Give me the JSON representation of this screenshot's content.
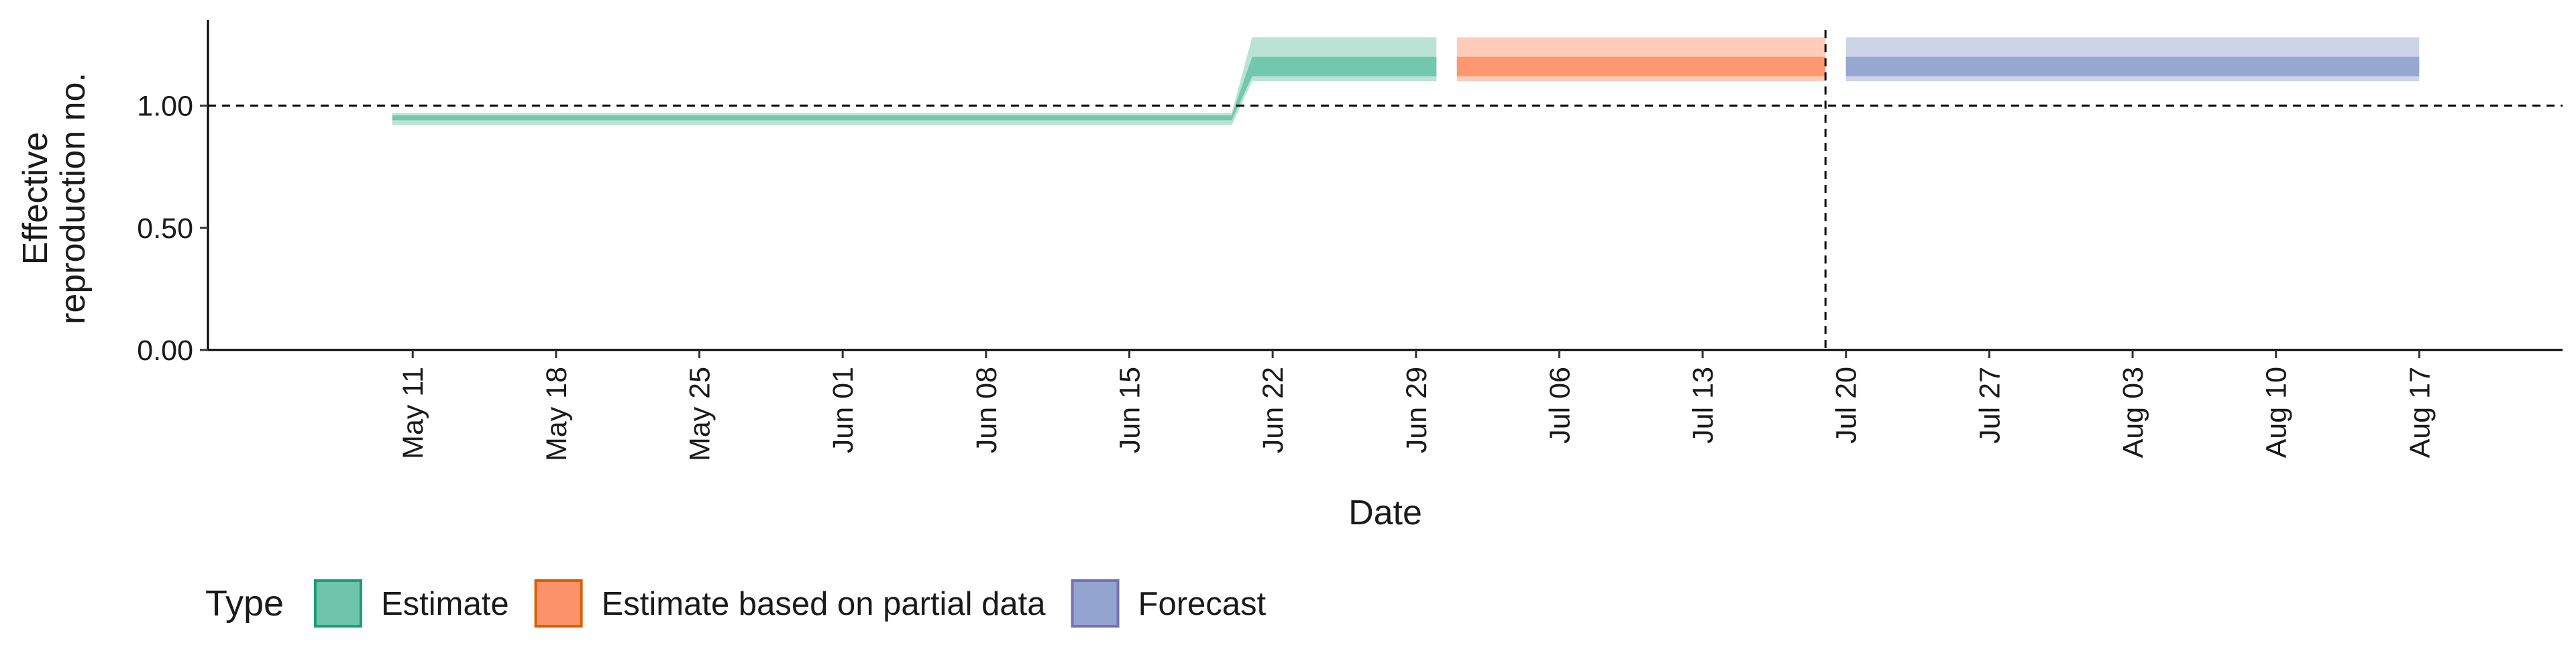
{
  "chart_data": {
    "type": "area",
    "xlabel": "Date",
    "ylabel_lines": [
      "Effective",
      "reproduction no."
    ],
    "ylim": [
      0,
      1.35
    ],
    "y_ticks": [
      0.0,
      0.5,
      1.0
    ],
    "y_tick_labels": [
      "0.00",
      "0.50",
      "1.00"
    ],
    "xlim": [
      "2020-05-01",
      "2020-08-24"
    ],
    "x_ticks": [
      "2020-05-11",
      "2020-05-18",
      "2020-05-25",
      "2020-06-01",
      "2020-06-08",
      "2020-06-15",
      "2020-06-22",
      "2020-06-29",
      "2020-07-06",
      "2020-07-13",
      "2020-07-20",
      "2020-07-27",
      "2020-08-03",
      "2020-08-10",
      "2020-08-17"
    ],
    "x_tick_labels": [
      "May 11",
      "May 18",
      "May 25",
      "Jun 01",
      "Jun 08",
      "Jun 15",
      "Jun 22",
      "Jun 29",
      "Jul 06",
      "Jul 13",
      "Jul 20",
      "Jul 27",
      "Aug 03",
      "Aug 10",
      "Aug 17"
    ],
    "reference_hline": 1.0,
    "reference_vline": "2020-07-19",
    "grid": false,
    "legend": {
      "title": "Type",
      "position": "bottom-left",
      "items": [
        "Estimate",
        "Estimate based on partial data",
        "Forecast"
      ]
    },
    "series": [
      {
        "name": "Estimate",
        "color": "#1b9e77",
        "fill": "#66c2a5",
        "points": [
          {
            "date": "2020-05-10",
            "lower90": 0.92,
            "lower50": 0.94,
            "upper50": 0.96,
            "upper90": 0.97
          },
          {
            "date": "2020-06-20",
            "lower90": 0.92,
            "lower50": 0.94,
            "upper50": 0.96,
            "upper90": 0.97
          },
          {
            "date": "2020-06-21",
            "lower90": 1.1,
            "lower50": 1.12,
            "upper50": 1.2,
            "upper90": 1.28
          },
          {
            "date": "2020-06-30",
            "lower90": 1.1,
            "lower50": 1.12,
            "upper50": 1.2,
            "upper90": 1.28
          }
        ]
      },
      {
        "name": "Estimate based on partial data",
        "color": "#d95f02",
        "fill": "#fc8d62",
        "points": [
          {
            "date": "2020-07-01",
            "lower90": 1.1,
            "lower50": 1.12,
            "upper50": 1.2,
            "upper90": 1.28
          },
          {
            "date": "2020-07-19",
            "lower90": 1.1,
            "lower50": 1.12,
            "upper50": 1.2,
            "upper90": 1.28
          }
        ]
      },
      {
        "name": "Forecast",
        "color": "#7570b3",
        "fill": "#8da0cb",
        "points": [
          {
            "date": "2020-07-20",
            "lower90": 1.1,
            "lower50": 1.12,
            "upper50": 1.2,
            "upper90": 1.28
          },
          {
            "date": "2020-08-17",
            "lower90": 1.1,
            "lower50": 1.12,
            "upper50": 1.2,
            "upper90": 1.28
          }
        ]
      }
    ]
  }
}
